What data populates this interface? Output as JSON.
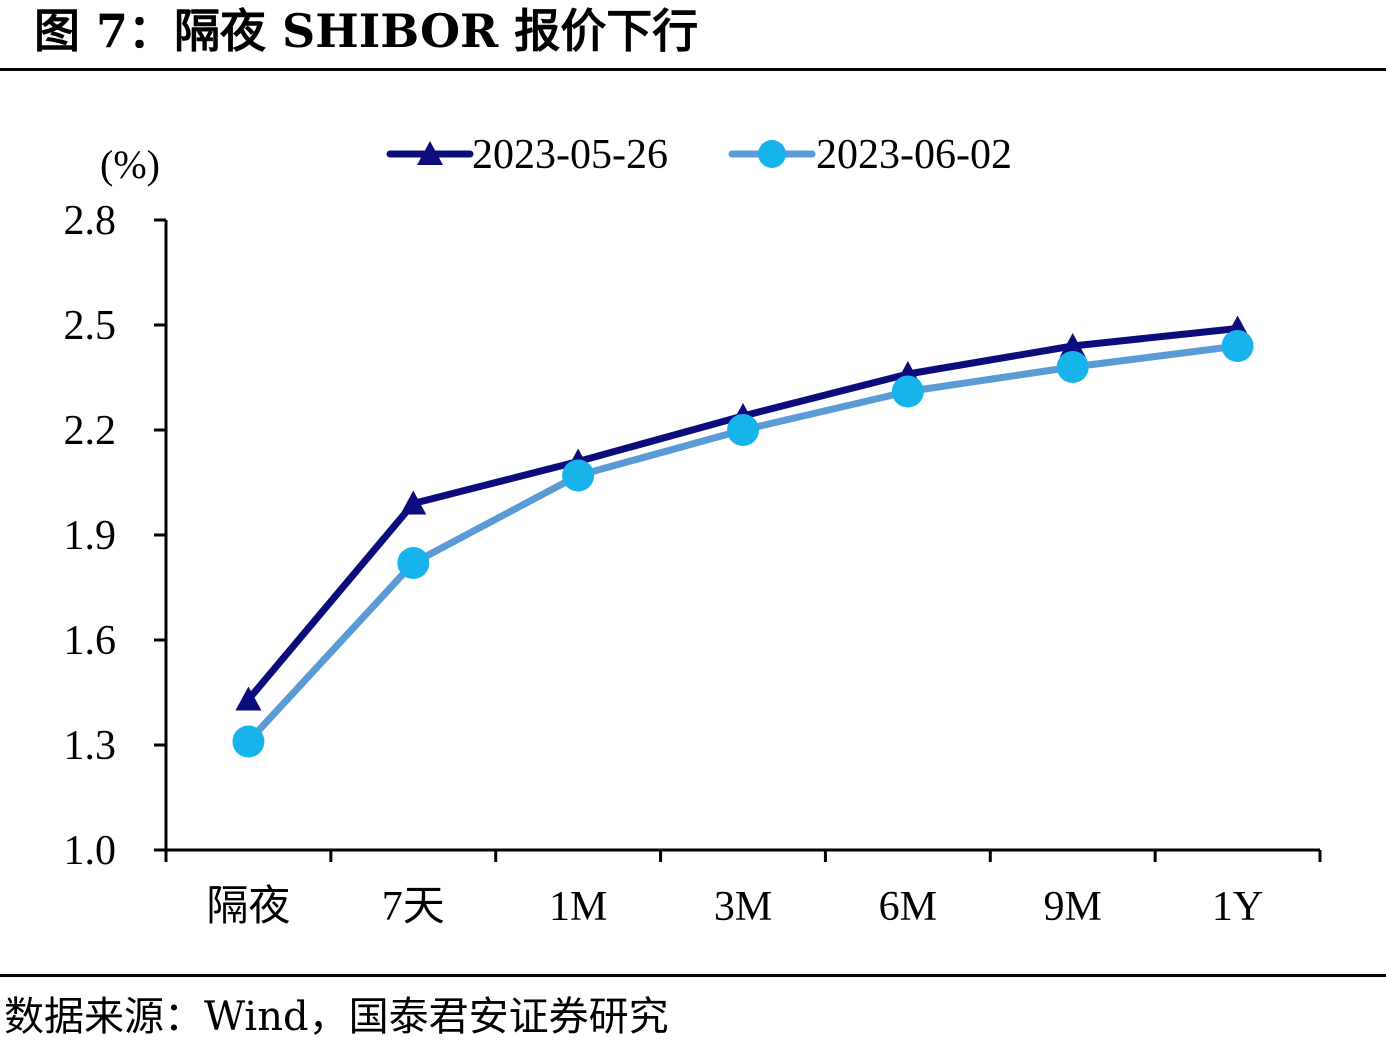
{
  "figure": {
    "title": "图 7：隔夜 SHIBOR 报价下行",
    "source": "数据来源：Wind，国泰君安证券研究"
  },
  "chart_data": {
    "type": "line",
    "title": "",
    "xlabel": "",
    "ylabel": "(%)",
    "ylim": [
      1.0,
      2.8
    ],
    "yticks": [
      "1.0",
      "1.3",
      "1.6",
      "1.9",
      "2.2",
      "2.5",
      "2.8"
    ],
    "categories": [
      "隔夜",
      "7天",
      "1M",
      "3M",
      "6M",
      "9M",
      "1Y"
    ],
    "legend_position": "top-center",
    "grid": false,
    "series": [
      {
        "name": "2023-05-26",
        "color": "#0d0c7c",
        "marker": "triangle",
        "values": [
          1.43,
          1.99,
          2.11,
          2.24,
          2.36,
          2.44,
          2.49
        ]
      },
      {
        "name": "2023-06-02",
        "color": "#5b9bd5",
        "marker_color": "#16b4ea",
        "marker": "circle",
        "values": [
          1.31,
          1.82,
          2.07,
          2.2,
          2.31,
          2.38,
          2.44
        ]
      }
    ]
  }
}
